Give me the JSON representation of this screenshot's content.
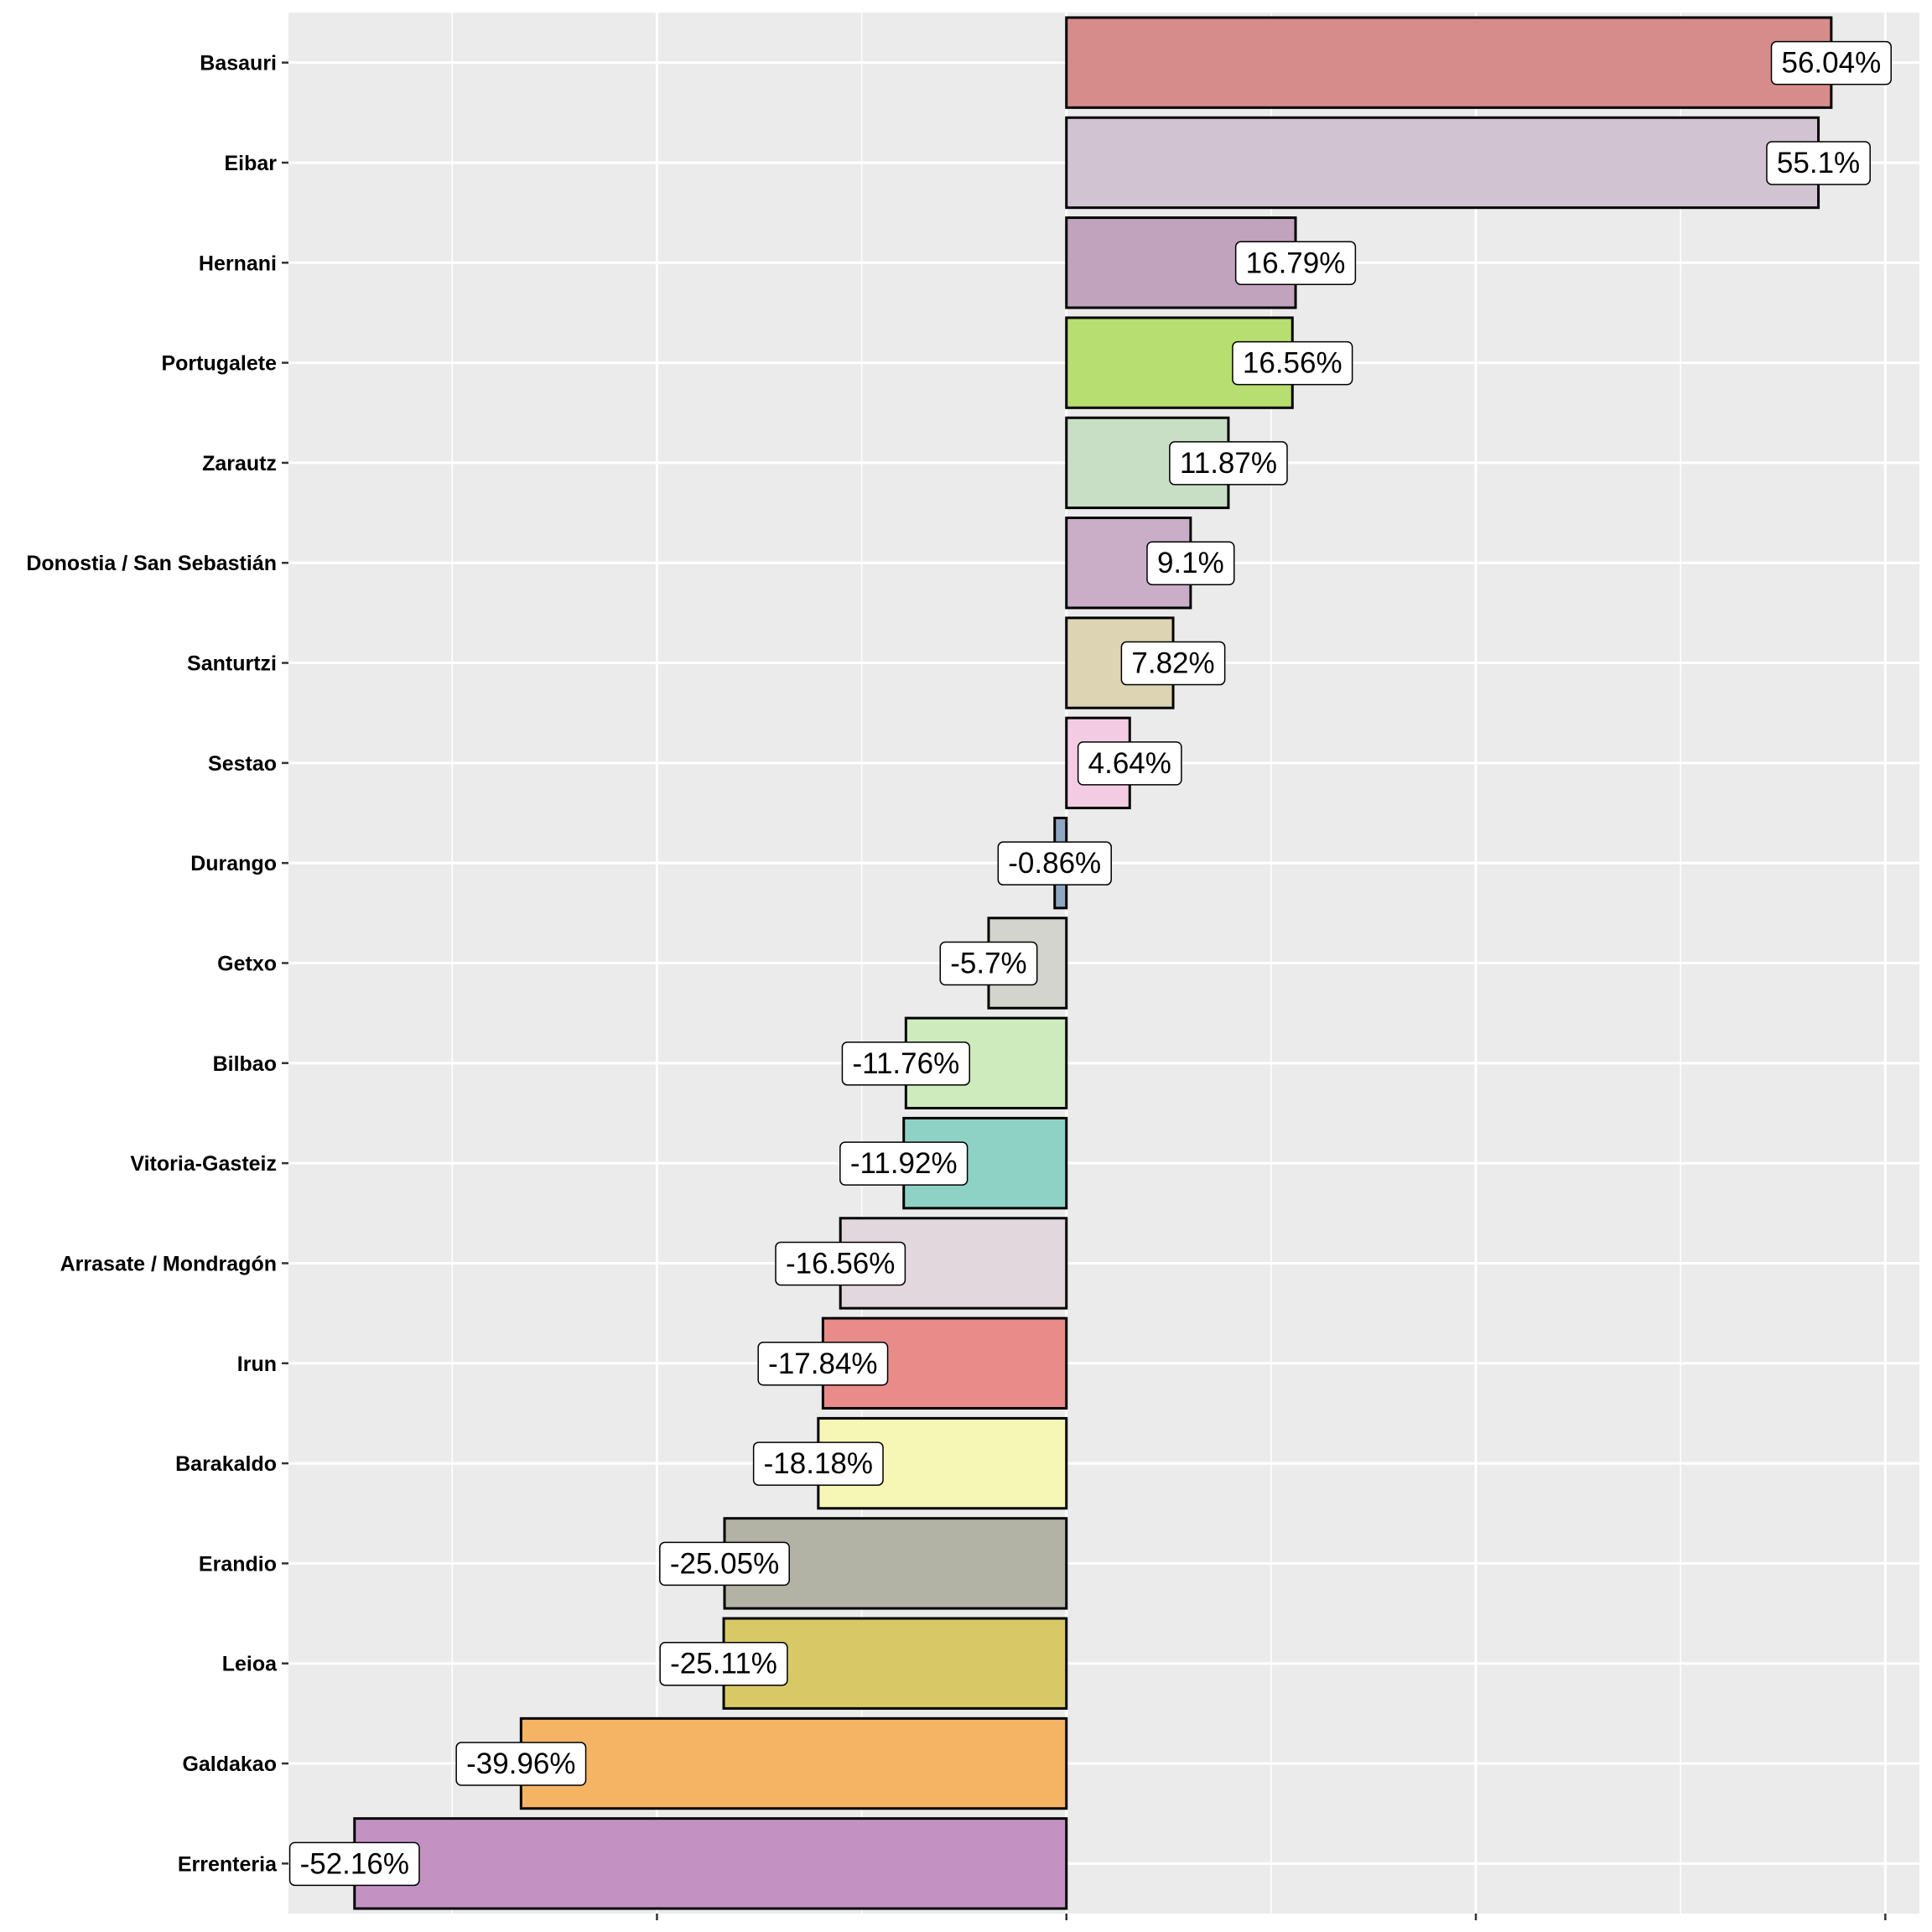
{
  "chart_data": {
    "type": "bar",
    "orientation": "horizontal",
    "title": "",
    "xlabel": "",
    "ylabel": "",
    "xlim": [
      -57,
      62.5
    ],
    "x_major_ticks": [
      -30,
      0,
      30,
      60
    ],
    "x_minor_ticks": [
      -45,
      -15,
      15,
      45
    ],
    "x_tick_labels_shown": false,
    "grid": true,
    "legend": "none",
    "categories": [
      "Basauri",
      "Eibar",
      "Hernani",
      "Portugalete",
      "Zarautz",
      "Donostia / San Sebastián",
      "Santurtzi",
      "Sestao",
      "Durango",
      "Getxo",
      "Bilbao",
      "Vitoria-Gasteiz",
      "Arrasate / Mondragón",
      "Irun",
      "Barakaldo",
      "Erandio",
      "Leioa",
      "Galdakao",
      "Errenteria"
    ],
    "values": [
      56.04,
      55.1,
      16.79,
      16.56,
      11.87,
      9.1,
      7.82,
      4.64,
      -0.86,
      -5.7,
      -11.76,
      -11.92,
      -16.56,
      -17.84,
      -18.18,
      -25.05,
      -25.11,
      -39.96,
      -52.16
    ],
    "labels": [
      "56.04%",
      "55.1%",
      "16.79%",
      "16.56%",
      "11.87%",
      "9.1%",
      "7.82%",
      "4.64%",
      "-0.86%",
      "-5.7%",
      "-11.76%",
      "-11.92%",
      "-16.56%",
      "-17.84%",
      "-18.18%",
      "-25.05%",
      "-25.11%",
      "-39.96%",
      "-52.16%"
    ],
    "colors": [
      "#d78c8c",
      "#d1c3d2",
      "#c1a3bd",
      "#b7de70",
      "#c9dfc5",
      "#caaec8",
      "#ddd4b4",
      "#f3cce3",
      "#8fa6c2",
      "#d4d4cf",
      "#cdebbd",
      "#8ed2c5",
      "#e1d7dd",
      "#e98b89",
      "#f6f6b5",
      "#b2b3a4",
      "#d8c966",
      "#f5b364",
      "#c392c3"
    ]
  }
}
